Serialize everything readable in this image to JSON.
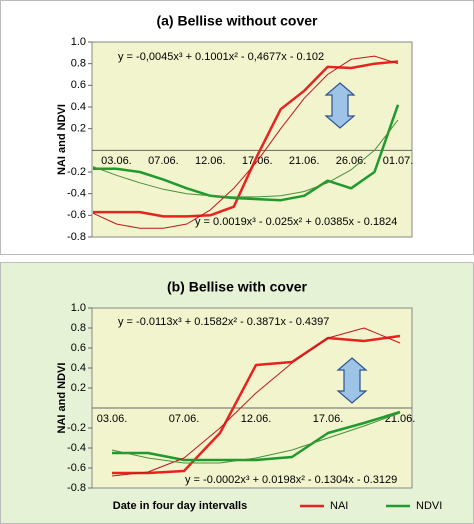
{
  "chart_data": [
    {
      "type": "line",
      "title": "(a) Bellise without cover",
      "ylabel": "NAI and NDVI",
      "categories": [
        null,
        "03.06.",
        null,
        "07.06.",
        null,
        "12.06.",
        null,
        "17.06.",
        null,
        "21.06.",
        null,
        "26.06.",
        null,
        "01.07."
      ],
      "ylim": [
        -0.8,
        1.0
      ],
      "yticks": [
        {
          "value": 1,
          "label": "1.0"
        },
        0.8,
        0.6,
        0.4,
        0.2,
        -0.2,
        -0.4,
        -0.6,
        -0.8
      ],
      "annotations": [
        "y = -0,0045x³ + 0.1001x² - 0,4677x - 0.102",
        "y = 0.0019x³ - 0.025x² + 0.0385x - 0.1824"
      ],
      "series": [
        {
          "name": "NAI",
          "color": "#e8231f",
          "values": [
            -0.57,
            -0.57,
            -0.57,
            -0.61,
            -0.61,
            -0.6,
            -0.52,
            -0.05,
            0.38,
            0.55,
            0.77,
            0.76,
            0.8,
            0.82
          ]
        },
        {
          "name": "NDVI",
          "color": "#1f9a2e",
          "values": [
            -0.17,
            -0.17,
            -0.2,
            -0.27,
            -0.35,
            -0.42,
            -0.44,
            -0.45,
            -0.46,
            -0.42,
            -0.28,
            -0.35,
            -0.2,
            0.42
          ]
        },
        {
          "color": "#c0181a",
          "line_width": 1,
          "values": [
            -0.58,
            -0.68,
            -0.72,
            -0.72,
            -0.68,
            -0.55,
            -0.35,
            -0.1,
            0.2,
            0.48,
            0.7,
            0.84,
            0.87,
            0.8
          ]
        },
        {
          "color": "#4a8f3a",
          "line_width": 1,
          "values": [
            -0.15,
            -0.23,
            -0.3,
            -0.36,
            -0.4,
            -0.42,
            -0.43,
            -0.43,
            -0.42,
            -0.38,
            -0.3,
            -0.18,
            0,
            0.28
          ]
        }
      ]
    },
    {
      "type": "line",
      "title": "(b) Bellise with cover",
      "ylabel": "NAI and NDVI",
      "xlabel": "Date in four day intervalls",
      "categories": [
        "03.06.",
        null,
        "07.06.",
        null,
        "12.06.",
        null,
        "17.06.",
        null,
        "21.06."
      ],
      "ylim": [
        -0.8,
        1.0
      ],
      "yticks": [
        {
          "value": 1,
          "label": "1.0"
        },
        0.8,
        0.6,
        0.4,
        0.2,
        -0.2,
        -0.4,
        -0.6,
        -0.8
      ],
      "annotations": [
        "y = -0.0113x³ + 0.1582x² - 0.3871x - 0.4397",
        "y = -0.0002x³ + 0.0198x² - 0.1304x - 0.3129"
      ],
      "legend": "bottom-right",
      "series": [
        {
          "name": "NAI",
          "color": "#e8231f",
          "values": [
            -0.65,
            -0.65,
            -0.63,
            -0.25,
            0.43,
            0.46,
            0.7,
            0.67,
            0.72
          ]
        },
        {
          "name": "NDVI",
          "color": "#1f9a2e",
          "values": [
            -0.45,
            -0.45,
            -0.52,
            -0.52,
            -0.52,
            -0.49,
            -0.25,
            -0.15,
            -0.04
          ]
        },
        {
          "color": "#c0181a",
          "line_width": 1,
          "values": [
            -0.68,
            -0.64,
            -0.5,
            -0.2,
            0.15,
            0.45,
            0.7,
            0.8,
            0.65
          ]
        },
        {
          "color": "#4a8f3a",
          "line_width": 1,
          "values": [
            -0.42,
            -0.5,
            -0.55,
            -0.55,
            -0.5,
            -0.42,
            -0.3,
            -0.18,
            -0.05
          ]
        }
      ]
    }
  ]
}
